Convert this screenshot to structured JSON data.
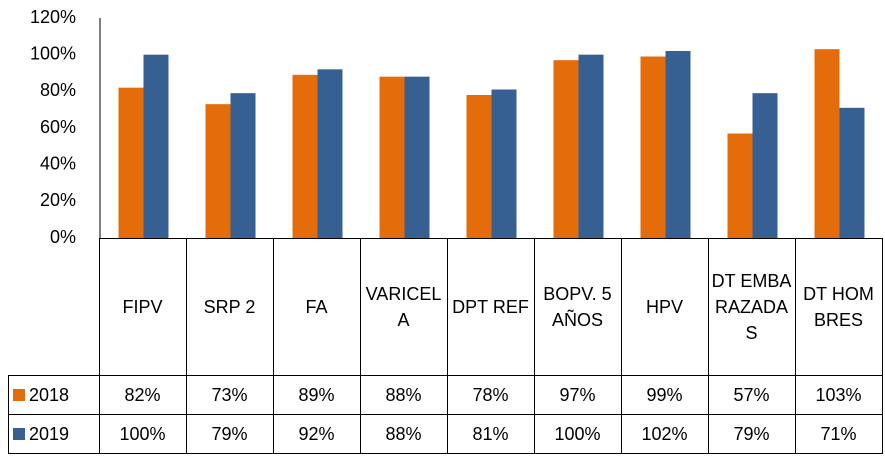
{
  "chart_data": {
    "type": "bar",
    "categories": [
      "FIPV",
      "SRP 2",
      "FA",
      "VARICELA",
      "DPT REF",
      "BOPV. 5 AÑOS",
      "HPV",
      "DT EMBARAZADAS",
      "DT HOMBRES"
    ],
    "series": [
      {
        "name": "2018",
        "color": "#e46c0a",
        "values": [
          82,
          73,
          89,
          88,
          78,
          97,
          99,
          57,
          103
        ],
        "value_labels": [
          "82%",
          "73%",
          "89%",
          "88%",
          "78%",
          "97%",
          "99%",
          "57%",
          "103%"
        ]
      },
      {
        "name": "2019",
        "color": "#376092",
        "values": [
          100,
          79,
          92,
          88,
          81,
          100,
          102,
          79,
          71
        ],
        "value_labels": [
          "100%",
          "79%",
          "92%",
          "88%",
          "81%",
          "100%",
          "102%",
          "79%",
          "71%"
        ]
      }
    ],
    "ylim": [
      0,
      120
    ],
    "yticks": [
      {
        "value": 0,
        "label": "0%"
      },
      {
        "value": 20,
        "label": "20%"
      },
      {
        "value": 40,
        "label": "40%"
      },
      {
        "value": 60,
        "label": "60%"
      },
      {
        "value": 80,
        "label": "80%"
      },
      {
        "value": 100,
        "label": "100%"
      },
      {
        "value": 120,
        "label": "120%"
      }
    ],
    "grid": false
  }
}
